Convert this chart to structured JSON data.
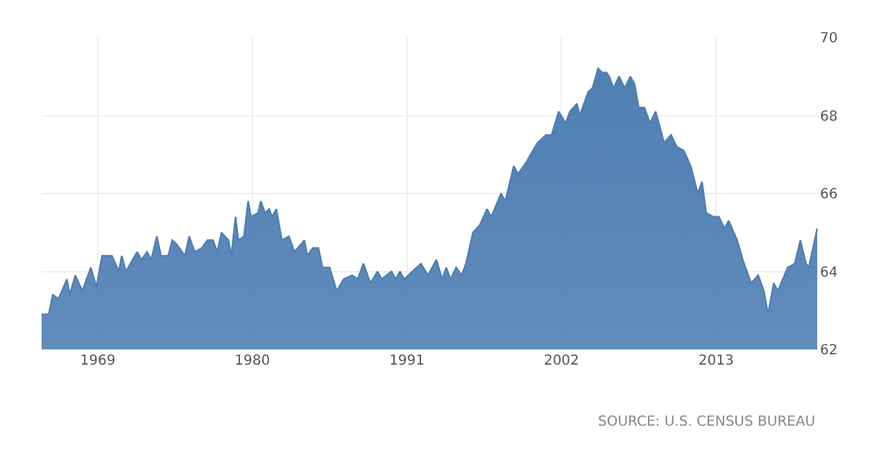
{
  "chart_data": {
    "type": "area",
    "annotations": [
      "SOURCE: U.S. CENSUS BUREAU"
    ],
    "x": [
      1965.0,
      1965.5,
      1965.8,
      1966.2,
      1966.8,
      1967.0,
      1967.4,
      1967.9,
      1968.5,
      1968.9,
      1969.3,
      1970.0,
      1970.5,
      1970.7,
      1971.0,
      1971.8,
      1972.1,
      1972.5,
      1972.8,
      1973.2,
      1973.5,
      1974.0,
      1974.3,
      1974.6,
      1975.2,
      1975.5,
      1975.9,
      1976.4,
      1976.8,
      1977.2,
      1977.5,
      1977.8,
      1978.3,
      1978.5,
      1978.8,
      1979.0,
      1979.4,
      1979.7,
      1979.9,
      1980.4,
      1980.6,
      1980.9,
      1981.2,
      1981.4,
      1981.7,
      1982.1,
      1982.6,
      1983.0,
      1983.7,
      1983.9,
      1984.3,
      1984.7,
      1985.0,
      1985.5,
      1986.0,
      1986.5,
      1987.1,
      1987.5,
      1987.9,
      1988.4,
      1988.9,
      1989.2,
      1989.9,
      1990.2,
      1990.5,
      1990.8,
      1991.4,
      1992.0,
      1992.5,
      1993.1,
      1993.5,
      1993.8,
      1994.1,
      1994.5,
      1994.9,
      1995.2,
      1995.7,
      1996.2,
      1996.7,
      1997.0,
      1997.7,
      1998.0,
      1998.6,
      1998.9,
      1999.5,
      1999.8,
      2000.3,
      2000.9,
      2001.3,
      2001.8,
      2002.3,
      2002.6,
      2003.1,
      2003.3,
      2003.9,
      2004.2,
      2004.6,
      2004.9,
      2005.2,
      2005.4,
      2005.7,
      2006.1,
      2006.5,
      2006.9,
      2007.2,
      2007.5,
      2007.9,
      2008.3,
      2008.7,
      2009.3,
      2009.8,
      2010.2,
      2010.7,
      2011.2,
      2011.7,
      2012.0,
      2012.3,
      2012.8,
      2013.2,
      2013.6,
      2013.9,
      2014.5,
      2014.9,
      2015.5,
      2016.0,
      2016.4,
      2016.7,
      2017.1,
      2017.4,
      2018.1,
      2018.6,
      2019.0,
      2019.4,
      2019.6,
      2020.2
    ],
    "series": [
      {
        "color": "#4f7fb3",
        "values": [
          62.9,
          62.9,
          63.4,
          63.3,
          63.8,
          63.4,
          63.9,
          63.5,
          64.1,
          63.6,
          64.4,
          64.4,
          64.0,
          64.4,
          64.0,
          64.5,
          64.3,
          64.5,
          64.3,
          64.9,
          64.4,
          64.4,
          64.8,
          64.7,
          64.4,
          64.9,
          64.5,
          64.6,
          64.8,
          64.8,
          64.5,
          65.0,
          64.8,
          64.4,
          65.4,
          64.8,
          64.9,
          65.8,
          65.4,
          65.5,
          65.8,
          65.5,
          65.6,
          65.4,
          65.6,
          64.8,
          64.9,
          64.5,
          64.8,
          64.4,
          64.6,
          64.6,
          64.1,
          64.1,
          63.5,
          63.8,
          63.9,
          63.8,
          64.2,
          63.7,
          64.0,
          63.8,
          64.0,
          63.8,
          64.0,
          63.8,
          64.0,
          64.2,
          63.9,
          64.3,
          63.8,
          64.1,
          63.8,
          64.1,
          63.9,
          64.2,
          65.0,
          65.2,
          65.6,
          65.4,
          66.0,
          65.8,
          66.7,
          66.5,
          66.8,
          67.0,
          67.3,
          67.5,
          67.5,
          68.1,
          67.8,
          68.1,
          68.3,
          68.0,
          68.6,
          68.7,
          69.2,
          69.1,
          69.1,
          69.0,
          68.7,
          69.0,
          68.7,
          69.0,
          68.8,
          68.2,
          68.2,
          67.8,
          68.1,
          67.3,
          67.5,
          67.2,
          67.1,
          66.7,
          66.0,
          66.3,
          65.5,
          65.4,
          65.4,
          65.1,
          65.3,
          64.8,
          64.3,
          63.7,
          63.9,
          63.5,
          62.9,
          63.7,
          63.5,
          64.1,
          64.2,
          64.8,
          64.2,
          64.1,
          65.1
        ]
      }
    ],
    "xlim": [
      1965.0,
      2020.3
    ],
    "xticks": [
      1969,
      1980,
      1991,
      2002,
      2013
    ],
    "ylim": [
      62,
      70
    ],
    "yticks": [
      62,
      64,
      66,
      68,
      70
    ],
    "grid": true,
    "legend": false
  }
}
